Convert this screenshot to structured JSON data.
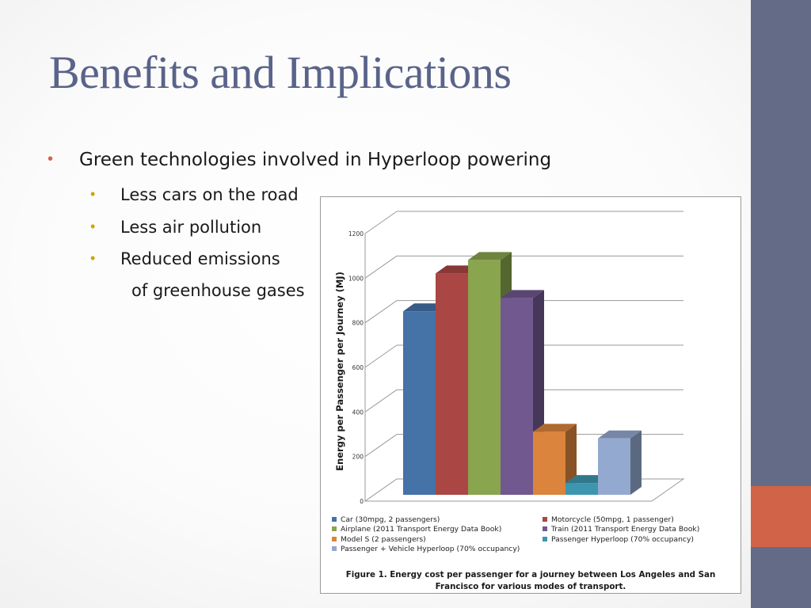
{
  "slide": {
    "title": "Benefits and Implications",
    "bullet_main": "Green technologies involved in Hyperloop powering",
    "sub_bullets": [
      "Less cars on the road",
      "Less air pollution",
      "Reduced emissions"
    ],
    "sub_bullet_continuation": "of greenhouse gases",
    "colors": {
      "title": "#5a6389",
      "side_band": "#646b86",
      "accent": "#d16349",
      "sub_bullet_dot": "#c9a800"
    }
  },
  "chart_data": {
    "type": "bar",
    "ylabel": "Energy per Passenger per Journey (MJ)",
    "ylim": [
      0,
      1200
    ],
    "yticks": [
      "0",
      "200",
      "400",
      "600",
      "800",
      "1000",
      "1200"
    ],
    "grid": true,
    "categories": [
      "Car  (30mpg, 2 passengers)",
      "Motorcycle  (50mpg, 1 passenger)",
      "Airplane  (2011 Transport Energy Data Book)",
      "Train  (2011 Transport Energy Data Book)",
      "Model S  (2 passengers)",
      "Passenger Hyperloop  (70% occupancy)",
      "Passenger + Vehicle Hyperloop  (70% occupancy)"
    ],
    "values": [
      830,
      1000,
      1060,
      890,
      290,
      60,
      260
    ],
    "colors": [
      "#4572a7",
      "#aa4643",
      "#89a54e",
      "#71588f",
      "#db843d",
      "#3d96ae",
      "#93a9cf"
    ],
    "caption": "Figure 1. Energy cost per passenger for a journey between Los Angeles and San Francisco for various modes of transport."
  }
}
